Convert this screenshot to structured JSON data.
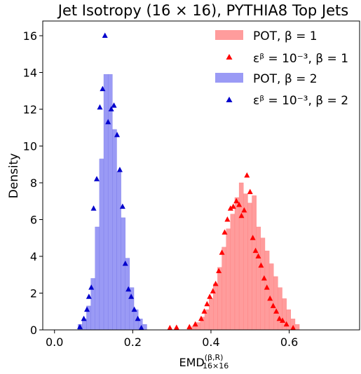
{
  "chart_data": {
    "type": "bar",
    "title": "Jet Isotropy (16 × 16), PYTHIA8 Top Jets",
    "xlabel": "EMD",
    "xlabel_sup": "(β,R)",
    "xlabel_sub": "16×16",
    "ylabel": "Density",
    "xlim": [
      -0.03,
      0.78
    ],
    "ylim": [
      0,
      16.8
    ],
    "xticks": [
      0.0,
      0.2,
      0.4,
      0.6
    ],
    "xtick_labels": [
      "0.0",
      "0.2",
      "0.4",
      "0.6"
    ],
    "yticks": [
      0,
      2,
      4,
      6,
      8,
      10,
      12,
      14,
      16
    ],
    "ytick_labels": [
      "0",
      "2",
      "4",
      "6",
      "8",
      "10",
      "12",
      "14",
      "16"
    ],
    "legend_position": "top-right",
    "colors": {
      "pot_b1_fill": "#ff9c9c",
      "pot_b1_edge": "#ff8080",
      "eps_b1": "#ff0000",
      "pot_b2_fill": "#9a9af5",
      "pot_b2_edge": "#7a7ae8",
      "eps_b2": "#0000cc"
    },
    "series": [
      {
        "name": "POT, β = 1",
        "kind": "histogram",
        "color_key": "pot_b1",
        "bin_width": 0.011,
        "bins": [
          [
            0.34,
            0.1
          ],
          [
            0.351,
            0.2
          ],
          [
            0.362,
            0.4
          ],
          [
            0.373,
            0.7
          ],
          [
            0.384,
            1.1
          ],
          [
            0.395,
            1.7
          ],
          [
            0.406,
            2.5
          ],
          [
            0.417,
            3.4
          ],
          [
            0.428,
            4.5
          ],
          [
            0.439,
            5.5
          ],
          [
            0.45,
            6.3
          ],
          [
            0.461,
            7.2
          ],
          [
            0.472,
            8.0
          ],
          [
            0.483,
            7.4
          ],
          [
            0.494,
            6.9
          ],
          [
            0.505,
            7.3
          ],
          [
            0.516,
            5.6
          ],
          [
            0.527,
            5.0
          ],
          [
            0.538,
            4.3
          ],
          [
            0.549,
            3.6
          ],
          [
            0.56,
            2.9
          ],
          [
            0.571,
            2.3
          ],
          [
            0.582,
            1.7
          ],
          [
            0.593,
            1.1
          ],
          [
            0.604,
            0.6
          ],
          [
            0.615,
            0.3
          ]
        ]
      },
      {
        "name": "εᵝ = 10⁻³, β = 1",
        "kind": "points",
        "color_key": "eps_b1",
        "points": [
          [
            0.295,
            0.1
          ],
          [
            0.312,
            0.12
          ],
          [
            0.345,
            0.15
          ],
          [
            0.36,
            0.3
          ],
          [
            0.375,
            0.6
          ],
          [
            0.383,
            1.0
          ],
          [
            0.39,
            1.4
          ],
          [
            0.397,
            1.8
          ],
          [
            0.405,
            2.1
          ],
          [
            0.412,
            2.5
          ],
          [
            0.42,
            3.2
          ],
          [
            0.428,
            4.2
          ],
          [
            0.435,
            5.3
          ],
          [
            0.442,
            6.0
          ],
          [
            0.45,
            6.6
          ],
          [
            0.457,
            6.7
          ],
          [
            0.465,
            7.0
          ],
          [
            0.472,
            6.8
          ],
          [
            0.478,
            6.2
          ],
          [
            0.485,
            6.5
          ],
          [
            0.492,
            8.4
          ],
          [
            0.5,
            7.5
          ],
          [
            0.507,
            5.0
          ],
          [
            0.514,
            4.3
          ],
          [
            0.521,
            4.0
          ],
          [
            0.528,
            3.5
          ],
          [
            0.536,
            2.8
          ],
          [
            0.543,
            2.3
          ],
          [
            0.551,
            1.7
          ],
          [
            0.559,
            1.3
          ],
          [
            0.567,
            1.0
          ],
          [
            0.575,
            0.6
          ],
          [
            0.583,
            0.5
          ],
          [
            0.593,
            0.3
          ],
          [
            0.61,
            0.1
          ]
        ]
      },
      {
        "name": "POT, β = 2",
        "kind": "histogram",
        "color_key": "pot_b2",
        "bin_width": 0.011,
        "bins": [
          [
            0.06,
            0.3
          ],
          [
            0.071,
            0.6
          ],
          [
            0.082,
            1.3
          ],
          [
            0.093,
            2.8
          ],
          [
            0.104,
            5.6
          ],
          [
            0.115,
            9.3
          ],
          [
            0.126,
            13.9
          ],
          [
            0.137,
            13.9
          ],
          [
            0.148,
            10.9
          ],
          [
            0.159,
            8.6
          ],
          [
            0.17,
            6.1
          ],
          [
            0.181,
            3.9
          ],
          [
            0.192,
            2.3
          ],
          [
            0.203,
            1.1
          ],
          [
            0.214,
            0.6
          ],
          [
            0.225,
            0.3
          ]
        ]
      },
      {
        "name": "εᵝ = 10⁻³, β = 2",
        "kind": "points",
        "color_key": "eps_b2",
        "points": [
          [
            0.065,
            0.15
          ],
          [
            0.075,
            0.6
          ],
          [
            0.083,
            1.1
          ],
          [
            0.088,
            1.8
          ],
          [
            0.094,
            2.3
          ],
          [
            0.1,
            6.6
          ],
          [
            0.108,
            8.2
          ],
          [
            0.116,
            12.1
          ],
          [
            0.123,
            13.1
          ],
          [
            0.129,
            16.0
          ],
          [
            0.137,
            11.3
          ],
          [
            0.145,
            12.0
          ],
          [
            0.152,
            12.2
          ],
          [
            0.16,
            10.6
          ],
          [
            0.167,
            8.7
          ],
          [
            0.174,
            6.7
          ],
          [
            0.181,
            3.6
          ],
          [
            0.189,
            2.2
          ],
          [
            0.196,
            1.8
          ],
          [
            0.204,
            1.1
          ],
          [
            0.213,
            0.6
          ],
          [
            0.222,
            0.1
          ]
        ]
      }
    ]
  }
}
